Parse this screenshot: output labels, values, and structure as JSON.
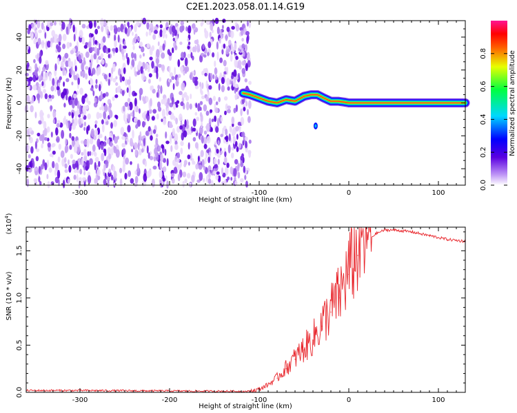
{
  "figure_title": "C2E1.2023.058.01.14.G19",
  "chart_data": [
    {
      "type": "heatmap",
      "title": "C2E1.2023.058.01.14.G19",
      "xlabel": "Height of straight line (km)",
      "ylabel": "Frequency (Hz)",
      "xlim": [
        -360,
        130
      ],
      "ylim": [
        -50,
        50
      ],
      "x_ticks": [
        -300,
        -200,
        -100,
        0,
        100
      ],
      "y_ticks": [
        -40,
        -20,
        0,
        20,
        40
      ],
      "noise_region": {
        "x_from": -360,
        "x_to": -110,
        "note_values": "scattered low-amplitude speckle across all frequencies"
      },
      "signal_track": {
        "x": [
          -118,
          -110,
          -100,
          -90,
          -80,
          -70,
          -60,
          -50,
          -42,
          -35,
          -28,
          -20,
          -12,
          -5,
          0,
          10,
          20,
          40,
          60,
          80,
          100,
          130
        ],
        "frequency": [
          6,
          5,
          3,
          1,
          0,
          2,
          1,
          4,
          5,
          5,
          3,
          1,
          1,
          0.5,
          0,
          0,
          0,
          0,
          0,
          0,
          0,
          0
        ]
      },
      "isolated_blob": {
        "x": -37,
        "frequency": -14
      },
      "colorbar": {
        "label": "Normalized spectral amplitude",
        "range": [
          0,
          1
        ],
        "ticks": [
          "0.0",
          "0.2",
          "0.4",
          "0.6",
          "0.8"
        ]
      },
      "grid": false
    },
    {
      "type": "line",
      "xlabel": "Height of straight line (km)",
      "ylabel": "SNR (10 * v/v)",
      "multiplier": "(x10",
      "multiplier_exp": "4",
      "multiplier_close": ")",
      "xlim": [
        -360,
        130
      ],
      "ylim": [
        0,
        1.75
      ],
      "x_ticks": [
        -300,
        -200,
        -100,
        0,
        100
      ],
      "y_ticks": [
        "0.0",
        "0.5",
        "1.0",
        "1.5"
      ],
      "series": [
        {
          "color": "#e8252b",
          "x": [
            -360,
            -300,
            -200,
            -110,
            -100,
            -90,
            -80,
            -70,
            -60,
            -50,
            -40,
            -30,
            -20,
            -10,
            0,
            10,
            20,
            30,
            40,
            50,
            60,
            70,
            80,
            90,
            100,
            110,
            120,
            130
          ],
          "y": [
            0.02,
            0.02,
            0.015,
            0.01,
            0.03,
            0.08,
            0.15,
            0.25,
            0.35,
            0.45,
            0.55,
            0.7,
            0.85,
            1.0,
            1.25,
            1.45,
            1.6,
            1.68,
            1.72,
            1.72,
            1.71,
            1.7,
            1.68,
            1.66,
            1.64,
            1.62,
            1.61,
            1.6
          ]
        }
      ],
      "grid": false
    }
  ]
}
